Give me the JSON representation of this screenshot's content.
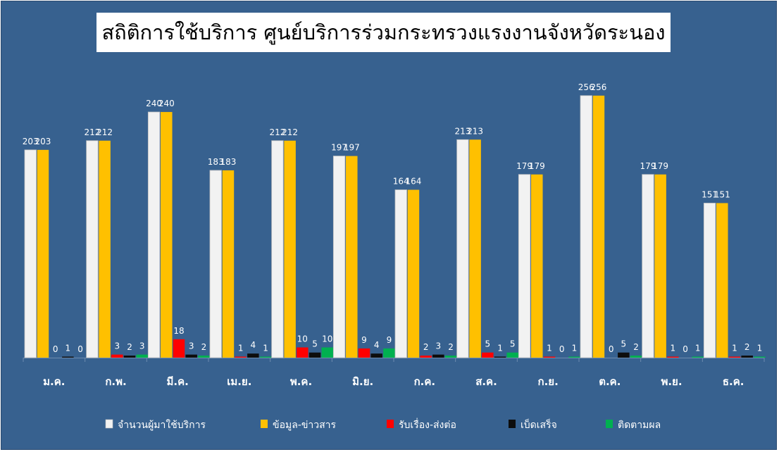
{
  "title": "สถิติการใช้บริการ ศูนย์บริการร่วมกระทรวงแรงงานจังหวัดระนอง",
  "chart_data": {
    "type": "bar",
    "title": "สถิติการใช้บริการ ศูนย์บริการร่วมกระทรวงแรงงานจังหวัดระนอง",
    "xlabel": "",
    "ylabel": "",
    "ylim": [
      0,
      260
    ],
    "grid": false,
    "legend_position": "bottom",
    "categories": [
      "ม.ค.",
      "ก.พ.",
      "มี.ค.",
      "เม.ย.",
      "พ.ค.",
      "มิ.ย.",
      "ก.ค.",
      "ส.ค.",
      "ก.ย.",
      "ต.ค.",
      "พ.ย.",
      "ธ.ค."
    ],
    "series": [
      {
        "name": "จำนวนผู้มาใช้บริการ",
        "color": "#F2F2F2",
        "values": [
          203,
          212,
          240,
          183,
          212,
          197,
          164,
          213,
          179,
          256,
          179,
          151
        ]
      },
      {
        "name": "ข้อมูล-ข่าวสาร",
        "color": "#FFC000",
        "values": [
          203,
          212,
          240,
          183,
          212,
          197,
          164,
          213,
          179,
          256,
          179,
          151
        ]
      },
      {
        "name": "รับเรื่อง-ส่งต่อ",
        "color": "#FF0000",
        "values": [
          0,
          3,
          18,
          1,
          10,
          9,
          2,
          5,
          1,
          0,
          1,
          1
        ]
      },
      {
        "name": "เบ็ดเสร็จ",
        "color": "#0D0D0D",
        "values": [
          1,
          2,
          3,
          4,
          5,
          4,
          3,
          1,
          0,
          5,
          0,
          2
        ]
      },
      {
        "name": "ติดตามผล",
        "color": "#00B050",
        "values": [
          0,
          3,
          2,
          1,
          10,
          9,
          2,
          5,
          1,
          2,
          1,
          1
        ]
      }
    ]
  }
}
